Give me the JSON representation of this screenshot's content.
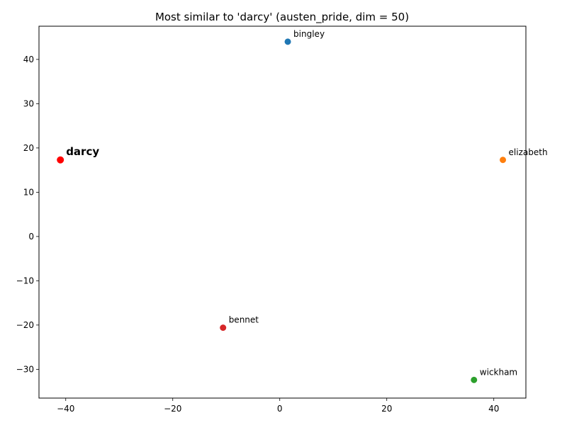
{
  "chart_data": {
    "type": "scatter",
    "title": "Most similar to 'darcy' (austen_pride, dim = 50)",
    "xlabel": "",
    "ylabel": "",
    "xlim": [
      -45,
      46
    ],
    "ylim": [
      -36.5,
      47.5
    ],
    "xticks": [
      -40,
      -20,
      0,
      20,
      40
    ],
    "yticks": [
      -30,
      -20,
      -10,
      0,
      10,
      20,
      30,
      40
    ],
    "grid": false,
    "points": [
      {
        "label": "darcy",
        "x": -41.0,
        "y": 17.3,
        "color": "#ff0000",
        "highlight": true
      },
      {
        "label": "bingley",
        "x": 1.5,
        "y": 44.0,
        "color": "#1f77b4",
        "highlight": false
      },
      {
        "label": "elizabeth",
        "x": 41.7,
        "y": 17.3,
        "color": "#ff7f0e",
        "highlight": false
      },
      {
        "label": "bennet",
        "x": -10.6,
        "y": -20.6,
        "color": "#d62728",
        "highlight": false
      },
      {
        "label": "wickham",
        "x": 36.3,
        "y": -32.4,
        "color": "#2ca02c",
        "highlight": false
      }
    ]
  }
}
